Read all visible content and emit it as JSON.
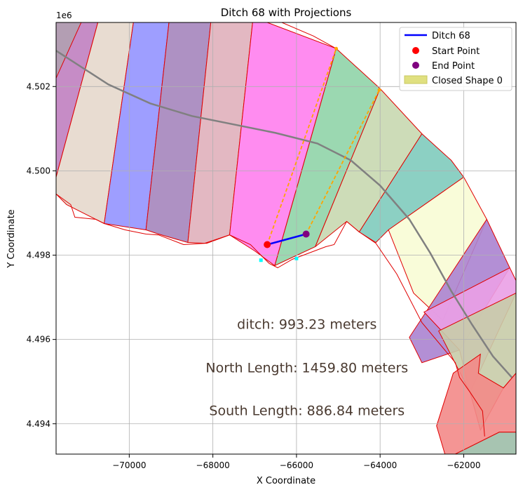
{
  "chart_data": {
    "type": "scatter",
    "title": "Ditch 68 with Projections",
    "xlabel": "X Coordinate",
    "ylabel": "Y Coordinate",
    "y_offset_label": "1e6",
    "xlim": [
      -71750,
      -60750
    ],
    "ylim": [
      4.49328,
      4.50352
    ],
    "grid": true,
    "legend_placement": "top-right",
    "x_ticks": [
      -70000,
      -68000,
      -66000,
      -64000,
      -62000
    ],
    "x_tick_labels": [
      "−70000",
      "−68000",
      "−66000",
      "−64000",
      "−62000"
    ],
    "y_ticks": [
      4.494,
      4.496,
      4.498,
      4.5,
      4.502
    ],
    "y_tick_labels": [
      "4.494",
      "4.496",
      "4.498",
      "4.500",
      "4.502"
    ],
    "legend": [
      {
        "label": "Ditch 68",
        "kind": "line",
        "color": "#0000ff"
      },
      {
        "label": "Start Point",
        "kind": "dot",
        "color": "#ff0000"
      },
      {
        "label": "End Point",
        "kind": "dot",
        "color": "#800080"
      },
      {
        "label": "Closed Shape 0",
        "kind": "patch",
        "color": "#e0e080"
      }
    ],
    "ditch": {
      "x": [
        -66700,
        -65770
      ],
      "y": [
        4.49825,
        4.4985
      ],
      "color": "#0000ff"
    },
    "start_point": {
      "x": -66700,
      "y": 4.49825,
      "color": "#ff0000"
    },
    "end_point": {
      "x": -65770,
      "y": 4.4985,
      "color": "#800080"
    },
    "projections": [
      {
        "x": [
          -66700,
          -65050
        ],
        "y": [
          4.49825,
          4.5029
        ],
        "color": "#ffa500"
      },
      {
        "x": [
          -65770,
          -64020
        ],
        "y": [
          4.4985,
          4.50192
        ],
        "color": "#ffa500"
      }
    ],
    "projection_ends": {
      "x": [
        -65050,
        -64020
      ],
      "y": [
        4.5029,
        4.50192
      ],
      "color": "#ffa500"
    },
    "cyan_markers": {
      "x": [
        -66850,
        -66000
      ],
      "y": [
        4.49788,
        4.49792
      ],
      "color": "#00ffff"
    },
    "centerline": {
      "color": "#808080",
      "x": [
        -71750,
        -70500,
        -69500,
        -68500,
        -67500,
        -66500,
        -65500,
        -64700,
        -64000,
        -63300,
        -62800,
        -62300,
        -61800,
        -61300,
        -60850
      ],
      "y": [
        4.50285,
        4.50205,
        4.5016,
        4.5013,
        4.5011,
        4.5009,
        4.50065,
        4.50025,
        4.49965,
        4.49885,
        4.49805,
        4.49715,
        4.49635,
        4.4956,
        4.4951
      ]
    },
    "shapes": [
      {
        "color": "#c080c0",
        "points": [
          [
            -71750,
            4.50352
          ],
          [
            -70750,
            4.50352
          ],
          [
            -71750,
            4.49985
          ]
        ]
      },
      {
        "color": "#b0a0b0",
        "points": [
          [
            -71750,
            4.50352
          ],
          [
            -71150,
            4.50352
          ],
          [
            -71750,
            4.5022
          ]
        ]
      },
      {
        "color": "#e5d8cc",
        "points": [
          [
            -70750,
            4.50352
          ],
          [
            -69900,
            4.50352
          ],
          [
            -70600,
            4.49875
          ],
          [
            -71500,
            4.4992
          ],
          [
            -71750,
            4.49945
          ],
          [
            -71750,
            4.49985
          ]
        ]
      },
      {
        "color": "#9494ff",
        "points": [
          [
            -69900,
            4.50352
          ],
          [
            -69050,
            4.50352
          ],
          [
            -69600,
            4.4986
          ],
          [
            -70600,
            4.49875
          ]
        ]
      },
      {
        "color": "#a585bd",
        "points": [
          [
            -69050,
            4.50352
          ],
          [
            -68050,
            4.50352
          ],
          [
            -68600,
            4.4983
          ],
          [
            -69300,
            4.4985
          ],
          [
            -69600,
            4.4986
          ]
        ]
      },
      {
        "color": "#e0b0bb",
        "points": [
          [
            -68050,
            4.50352
          ],
          [
            -67050,
            4.50352
          ],
          [
            -67600,
            4.49848
          ],
          [
            -68150,
            4.49828
          ],
          [
            -68600,
            4.4983
          ]
        ]
      },
      {
        "color": "#ff80ee",
        "points": [
          [
            -67050,
            4.50352
          ],
          [
            -66700,
            4.50352
          ],
          [
            -65050,
            4.5029
          ],
          [
            -66520,
            4.49775
          ],
          [
            -67000,
            4.4981
          ],
          [
            -67600,
            4.49848
          ]
        ]
      },
      {
        "color": "#90d4a8",
        "points": [
          [
            -65050,
            4.5029
          ],
          [
            -64000,
            4.50195
          ],
          [
            -65550,
            4.4982
          ],
          [
            -66200,
            4.4979
          ],
          [
            -66520,
            4.49775
          ]
        ]
      },
      {
        "color": "#c8d8b0",
        "points": [
          [
            -64000,
            4.50195
          ],
          [
            -63000,
            4.50088
          ],
          [
            -64500,
            4.49855
          ],
          [
            -64800,
            4.4988
          ],
          [
            -65550,
            4.4982
          ]
        ]
      },
      {
        "color": "#80cbbd",
        "points": [
          [
            -63000,
            4.50088
          ],
          [
            -62300,
            4.50025
          ],
          [
            -62000,
            4.49985
          ],
          [
            -63800,
            4.4986
          ],
          [
            -64100,
            4.4983
          ],
          [
            -64500,
            4.49855
          ]
        ]
      },
      {
        "color": "#f8fcd5",
        "points": [
          [
            -62000,
            4.49985
          ],
          [
            -61450,
            4.49885
          ],
          [
            -62500,
            4.49645
          ],
          [
            -63200,
            4.4971
          ],
          [
            -63800,
            4.4986
          ]
        ]
      },
      {
        "color": "#ab83d0",
        "points": [
          [
            -61450,
            4.49885
          ],
          [
            -60900,
            4.4977
          ],
          [
            -62100,
            4.49575
          ],
          [
            -63000,
            4.49545
          ],
          [
            -63300,
            4.49605
          ]
        ]
      },
      {
        "color": "#eaa0e6",
        "points": [
          [
            -60900,
            4.4977
          ],
          [
            -60750,
            4.4974
          ],
          [
            -60750,
            4.4971
          ],
          [
            -61850,
            4.49475
          ],
          [
            -62100,
            4.49575
          ],
          [
            -62950,
            4.49665
          ]
        ]
      },
      {
        "color": "#c8cca8",
        "points": [
          [
            -60750,
            4.4971
          ],
          [
            -60750,
            4.4952
          ],
          [
            -61050,
            4.49485
          ],
          [
            -61600,
            4.49385
          ],
          [
            -61850,
            4.49475
          ],
          [
            -62600,
            4.4962
          ]
        ]
      },
      {
        "color": "#f38a88",
        "points": [
          [
            -60750,
            4.4952
          ],
          [
            -60750,
            4.4938
          ],
          [
            -61150,
            4.4938
          ],
          [
            -62200,
            4.49328
          ],
          [
            -62450,
            4.49328
          ],
          [
            -62650,
            4.49395
          ],
          [
            -62250,
            4.4952
          ],
          [
            -61600,
            4.49565
          ],
          [
            -61650,
            4.4952
          ],
          [
            -61050,
            4.49485
          ]
        ]
      },
      {
        "color": "#9dbea8",
        "points": [
          [
            -60750,
            4.4938
          ],
          [
            -60750,
            4.49328
          ],
          [
            -62200,
            4.49328
          ],
          [
            -61150,
            4.4938
          ]
        ]
      }
    ],
    "boundary_top": [
      [
        -66700,
        4.50352
      ],
      [
        -66350,
        4.50352
      ],
      [
        -65600,
        4.5032
      ],
      [
        -65050,
        4.5029
      ]
    ],
    "boundary_bottom": [
      [
        -71750,
        4.49945
      ],
      [
        -71400,
        4.4992
      ],
      [
        -71300,
        4.4989
      ],
      [
        -70800,
        4.49885
      ],
      [
        -70600,
        4.49875
      ],
      [
        -70100,
        4.4986
      ],
      [
        -69600,
        4.4985
      ],
      [
        -69300,
        4.49848
      ],
      [
        -68700,
        4.49825
      ],
      [
        -68200,
        4.49828
      ],
      [
        -67600,
        4.49848
      ],
      [
        -67100,
        4.49825
      ],
      [
        -66650,
        4.4978
      ],
      [
        -66450,
        4.4977
      ],
      [
        -66100,
        4.4979
      ],
      [
        -65300,
        4.4982
      ],
      [
        -65100,
        4.49825
      ],
      [
        -64800,
        4.4988
      ],
      [
        -64500,
        4.49855
      ],
      [
        -64100,
        4.49828
      ],
      [
        -63600,
        4.49755
      ],
      [
        -63000,
        4.4964
      ],
      [
        -62200,
        4.49545
      ],
      [
        -62100,
        4.4951
      ],
      [
        -61850,
        4.49475
      ],
      [
        -61550,
        4.4943
      ],
      [
        -61500,
        4.4937
      ]
    ],
    "annotations": [
      {
        "text": "ditch: 993.23 meters",
        "x": -65750,
        "y": 4.49625
      },
      {
        "text": "North Length: 1459.80 meters",
        "x": -65750,
        "y": 4.49522
      },
      {
        "text": "South Length: 886.84 meters",
        "x": -65750,
        "y": 4.4942
      }
    ]
  }
}
